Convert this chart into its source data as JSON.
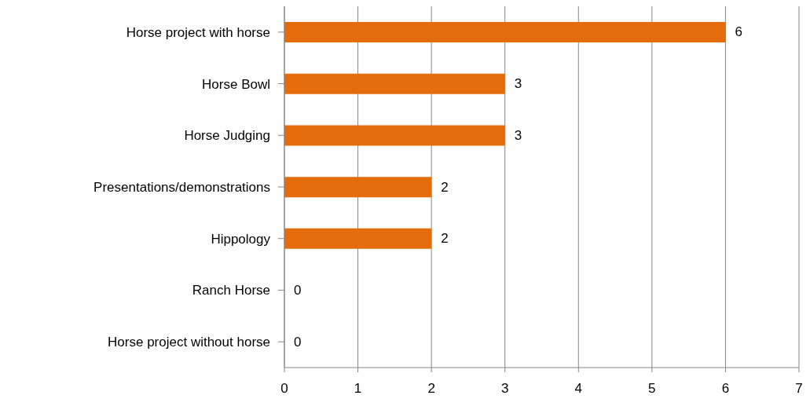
{
  "chart_data": {
    "type": "bar",
    "orientation": "horizontal",
    "categories": [
      "Horse project with horse",
      "Horse Bowl",
      "Horse Judging",
      "Presentations/demonstrations",
      "Hippology",
      "Ranch Horse",
      "Horse project without horse"
    ],
    "values": [
      6,
      3,
      3,
      2,
      2,
      0,
      0
    ],
    "color": "#e46c0a",
    "xlim": [
      0,
      7
    ],
    "xticks": [
      0,
      1,
      2,
      3,
      4,
      5,
      6,
      7
    ],
    "grid": "x",
    "data_labels": true
  }
}
